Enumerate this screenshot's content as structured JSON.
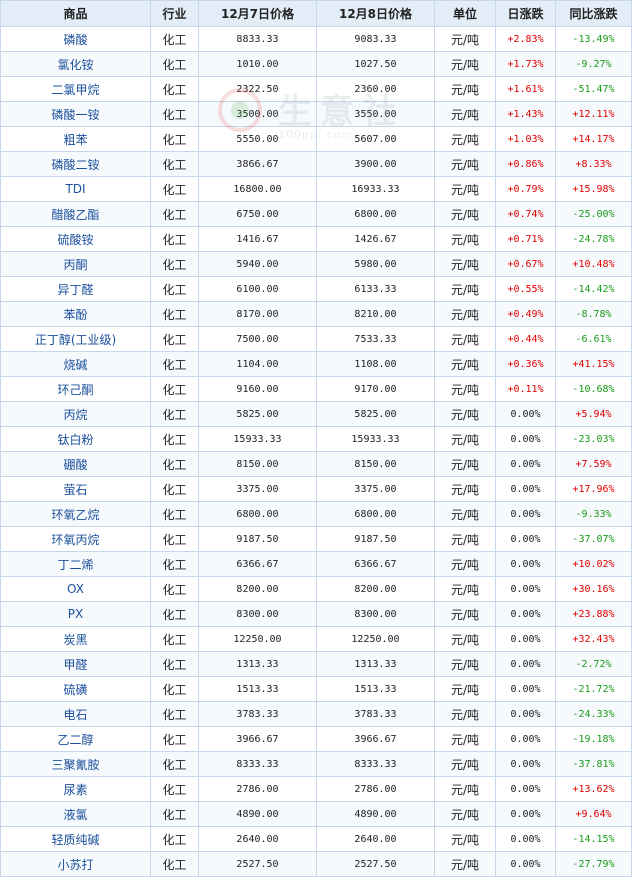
{
  "headers": {
    "product": "商品",
    "industry": "行业",
    "price_dec7": "12月7日价格",
    "price_dec8": "12月8日价格",
    "unit": "单位",
    "daily_change": "日涨跌",
    "yoy_change": "同比涨跌"
  },
  "watermark": {
    "text": "生意社",
    "url": "100ppi.com"
  },
  "colors": {
    "up": "#e00000",
    "down": "#1a9a1a",
    "header_bg": "#e3edf8",
    "border": "#c6d7ea",
    "link": "#1a4f9c"
  },
  "rows": [
    {
      "product": "磷酸",
      "industry": "化工",
      "p7": "8833.33",
      "p8": "9083.33",
      "unit": "元/吨",
      "daily": "+2.83%",
      "yoy": "-13.49%"
    },
    {
      "product": "氯化铵",
      "industry": "化工",
      "p7": "1010.00",
      "p8": "1027.50",
      "unit": "元/吨",
      "daily": "+1.73%",
      "yoy": "-9.27%"
    },
    {
      "product": "二氯甲烷",
      "industry": "化工",
      "p7": "2322.50",
      "p8": "2360.00",
      "unit": "元/吨",
      "daily": "+1.61%",
      "yoy": "-51.47%"
    },
    {
      "product": "磷酸一铵",
      "industry": "化工",
      "p7": "3500.00",
      "p8": "3550.00",
      "unit": "元/吨",
      "daily": "+1.43%",
      "yoy": "+12.11%"
    },
    {
      "product": "粗苯",
      "industry": "化工",
      "p7": "5550.00",
      "p8": "5607.00",
      "unit": "元/吨",
      "daily": "+1.03%",
      "yoy": "+14.17%"
    },
    {
      "product": "磷酸二铵",
      "industry": "化工",
      "p7": "3866.67",
      "p8": "3900.00",
      "unit": "元/吨",
      "daily": "+0.86%",
      "yoy": "+8.33%"
    },
    {
      "product": "TDI",
      "industry": "化工",
      "p7": "16800.00",
      "p8": "16933.33",
      "unit": "元/吨",
      "daily": "+0.79%",
      "yoy": "+15.98%"
    },
    {
      "product": "醋酸乙酯",
      "industry": "化工",
      "p7": "6750.00",
      "p8": "6800.00",
      "unit": "元/吨",
      "daily": "+0.74%",
      "yoy": "-25.00%"
    },
    {
      "product": "硫酸铵",
      "industry": "化工",
      "p7": "1416.67",
      "p8": "1426.67",
      "unit": "元/吨",
      "daily": "+0.71%",
      "yoy": "-24.78%"
    },
    {
      "product": "丙酮",
      "industry": "化工",
      "p7": "5940.00",
      "p8": "5980.00",
      "unit": "元/吨",
      "daily": "+0.67%",
      "yoy": "+10.48%"
    },
    {
      "product": "异丁醛",
      "industry": "化工",
      "p7": "6100.00",
      "p8": "6133.33",
      "unit": "元/吨",
      "daily": "+0.55%",
      "yoy": "-14.42%"
    },
    {
      "product": "苯酚",
      "industry": "化工",
      "p7": "8170.00",
      "p8": "8210.00",
      "unit": "元/吨",
      "daily": "+0.49%",
      "yoy": "-8.78%"
    },
    {
      "product": "正丁醇(工业级)",
      "industry": "化工",
      "p7": "7500.00",
      "p8": "7533.33",
      "unit": "元/吨",
      "daily": "+0.44%",
      "yoy": "-6.61%"
    },
    {
      "product": "烧碱",
      "industry": "化工",
      "p7": "1104.00",
      "p8": "1108.00",
      "unit": "元/吨",
      "daily": "+0.36%",
      "yoy": "+41.15%"
    },
    {
      "product": "环己酮",
      "industry": "化工",
      "p7": "9160.00",
      "p8": "9170.00",
      "unit": "元/吨",
      "daily": "+0.11%",
      "yoy": "-10.68%"
    },
    {
      "product": "丙烷",
      "industry": "化工",
      "p7": "5825.00",
      "p8": "5825.00",
      "unit": "元/吨",
      "daily": "0.00%",
      "yoy": "+5.94%"
    },
    {
      "product": "钛白粉",
      "industry": "化工",
      "p7": "15933.33",
      "p8": "15933.33",
      "unit": "元/吨",
      "daily": "0.00%",
      "yoy": "-23.03%"
    },
    {
      "product": "硼酸",
      "industry": "化工",
      "p7": "8150.00",
      "p8": "8150.00",
      "unit": "元/吨",
      "daily": "0.00%",
      "yoy": "+7.59%"
    },
    {
      "product": "萤石",
      "industry": "化工",
      "p7": "3375.00",
      "p8": "3375.00",
      "unit": "元/吨",
      "daily": "0.00%",
      "yoy": "+17.96%"
    },
    {
      "product": "环氧乙烷",
      "industry": "化工",
      "p7": "6800.00",
      "p8": "6800.00",
      "unit": "元/吨",
      "daily": "0.00%",
      "yoy": "-9.33%"
    },
    {
      "product": "环氧丙烷",
      "industry": "化工",
      "p7": "9187.50",
      "p8": "9187.50",
      "unit": "元/吨",
      "daily": "0.00%",
      "yoy": "-37.07%"
    },
    {
      "product": "丁二烯",
      "industry": "化工",
      "p7": "6366.67",
      "p8": "6366.67",
      "unit": "元/吨",
      "daily": "0.00%",
      "yoy": "+10.02%"
    },
    {
      "product": "OX",
      "industry": "化工",
      "p7": "8200.00",
      "p8": "8200.00",
      "unit": "元/吨",
      "daily": "0.00%",
      "yoy": "+30.16%"
    },
    {
      "product": "PX",
      "industry": "化工",
      "p7": "8300.00",
      "p8": "8300.00",
      "unit": "元/吨",
      "daily": "0.00%",
      "yoy": "+23.88%"
    },
    {
      "product": "炭黑",
      "industry": "化工",
      "p7": "12250.00",
      "p8": "12250.00",
      "unit": "元/吨",
      "daily": "0.00%",
      "yoy": "+32.43%"
    },
    {
      "product": "甲醛",
      "industry": "化工",
      "p7": "1313.33",
      "p8": "1313.33",
      "unit": "元/吨",
      "daily": "0.00%",
      "yoy": "-2.72%"
    },
    {
      "product": "硫磺",
      "industry": "化工",
      "p7": "1513.33",
      "p8": "1513.33",
      "unit": "元/吨",
      "daily": "0.00%",
      "yoy": "-21.72%"
    },
    {
      "product": "电石",
      "industry": "化工",
      "p7": "3783.33",
      "p8": "3783.33",
      "unit": "元/吨",
      "daily": "0.00%",
      "yoy": "-24.33%"
    },
    {
      "product": "乙二醇",
      "industry": "化工",
      "p7": "3966.67",
      "p8": "3966.67",
      "unit": "元/吨",
      "daily": "0.00%",
      "yoy": "-19.18%"
    },
    {
      "product": "三聚氰胺",
      "industry": "化工",
      "p7": "8333.33",
      "p8": "8333.33",
      "unit": "元/吨",
      "daily": "0.00%",
      "yoy": "-37.81%"
    },
    {
      "product": "尿素",
      "industry": "化工",
      "p7": "2786.00",
      "p8": "2786.00",
      "unit": "元/吨",
      "daily": "0.00%",
      "yoy": "+13.62%"
    },
    {
      "product": "液氯",
      "industry": "化工",
      "p7": "4890.00",
      "p8": "4890.00",
      "unit": "元/吨",
      "daily": "0.00%",
      "yoy": "+9.64%"
    },
    {
      "product": "轻质纯碱",
      "industry": "化工",
      "p7": "2640.00",
      "p8": "2640.00",
      "unit": "元/吨",
      "daily": "0.00%",
      "yoy": "-14.15%"
    },
    {
      "product": "小苏打",
      "industry": "化工",
      "p7": "2527.50",
      "p8": "2527.50",
      "unit": "元/吨",
      "daily": "0.00%",
      "yoy": "-27.79%"
    }
  ]
}
